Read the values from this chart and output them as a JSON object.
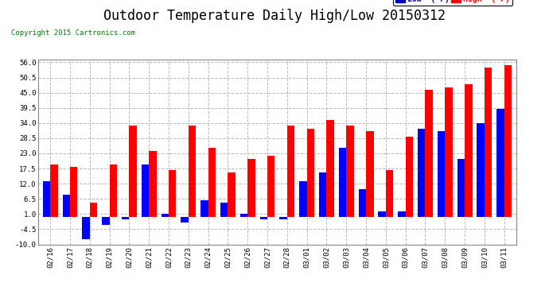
{
  "title": "Outdoor Temperature Daily High/Low 20150312",
  "copyright": "Copyright 2015 Cartronics.com",
  "legend_low": "Low  (°F)",
  "legend_high": "High  (°F)",
  "categories": [
    "02/16",
    "02/17",
    "02/18",
    "02/19",
    "02/20",
    "02/21",
    "02/22",
    "02/23",
    "02/24",
    "02/25",
    "02/26",
    "02/27",
    "02/28",
    "03/01",
    "03/02",
    "03/03",
    "03/04",
    "03/05",
    "03/06",
    "03/07",
    "03/08",
    "03/09",
    "03/10",
    "03/11"
  ],
  "high_values": [
    19,
    18,
    5,
    19,
    33,
    24,
    17,
    33,
    25,
    16,
    21,
    22,
    33,
    32,
    35,
    33,
    31,
    17,
    29,
    46,
    47,
    48,
    54,
    55
  ],
  "low_values": [
    13,
    8,
    -8,
    -3,
    -1,
    19,
    1,
    -2,
    6,
    5,
    1,
    -1,
    -1,
    13,
    16,
    25,
    10,
    2,
    2,
    32,
    31,
    21,
    34,
    39
  ],
  "low_color": "#0000ff",
  "high_color": "#ff0000",
  "legend_low_bg": "#0000cc",
  "legend_high_bg": "#ff0000",
  "bg_color": "#ffffff",
  "plot_bg_color": "#ffffff",
  "grid_color": "#bbbbbb",
  "ylim": [
    -10,
    57
  ],
  "yticks": [
    -10.0,
    -4.5,
    1.0,
    6.5,
    12.0,
    17.5,
    23.0,
    28.5,
    34.0,
    39.5,
    45.0,
    50.5,
    56.0
  ],
  "title_fontsize": 12,
  "bar_width": 0.38
}
